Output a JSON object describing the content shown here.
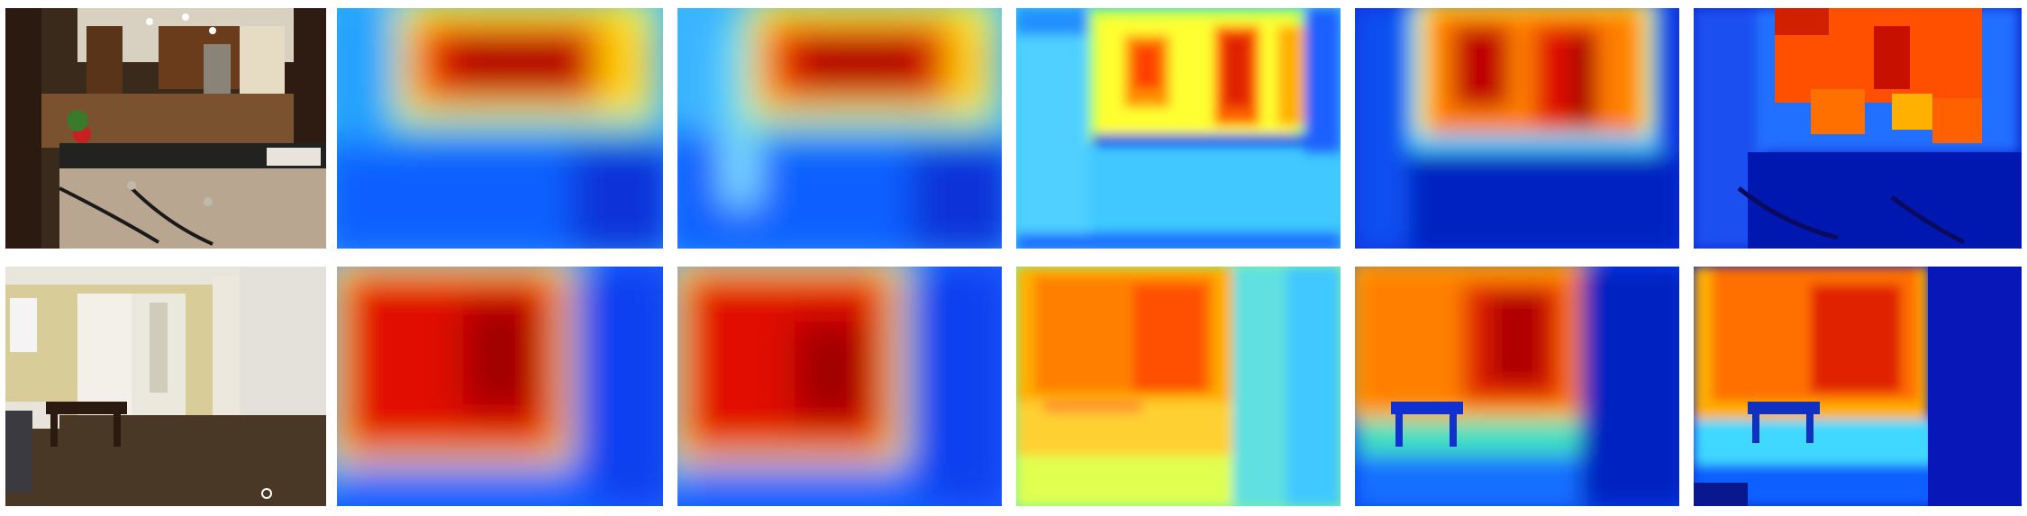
{
  "figure": {
    "rows": [
      {
        "scene": "kitchen",
        "columns": [
          "rgb-input",
          "depth-map-1",
          "depth-map-2",
          "depth-map-3",
          "depth-map-4",
          "ground-truth-depth"
        ]
      },
      {
        "scene": "bedroom",
        "columns": [
          "rgb-input",
          "depth-map-1",
          "depth-map-2",
          "depth-map-3",
          "depth-map-4",
          "ground-truth-depth"
        ]
      }
    ],
    "colormap": [
      "#00008f",
      "#0040ff",
      "#00c0ff",
      "#40ffbf",
      "#ffff00",
      "#ff8000",
      "#ff1a00",
      "#8f0000"
    ]
  }
}
